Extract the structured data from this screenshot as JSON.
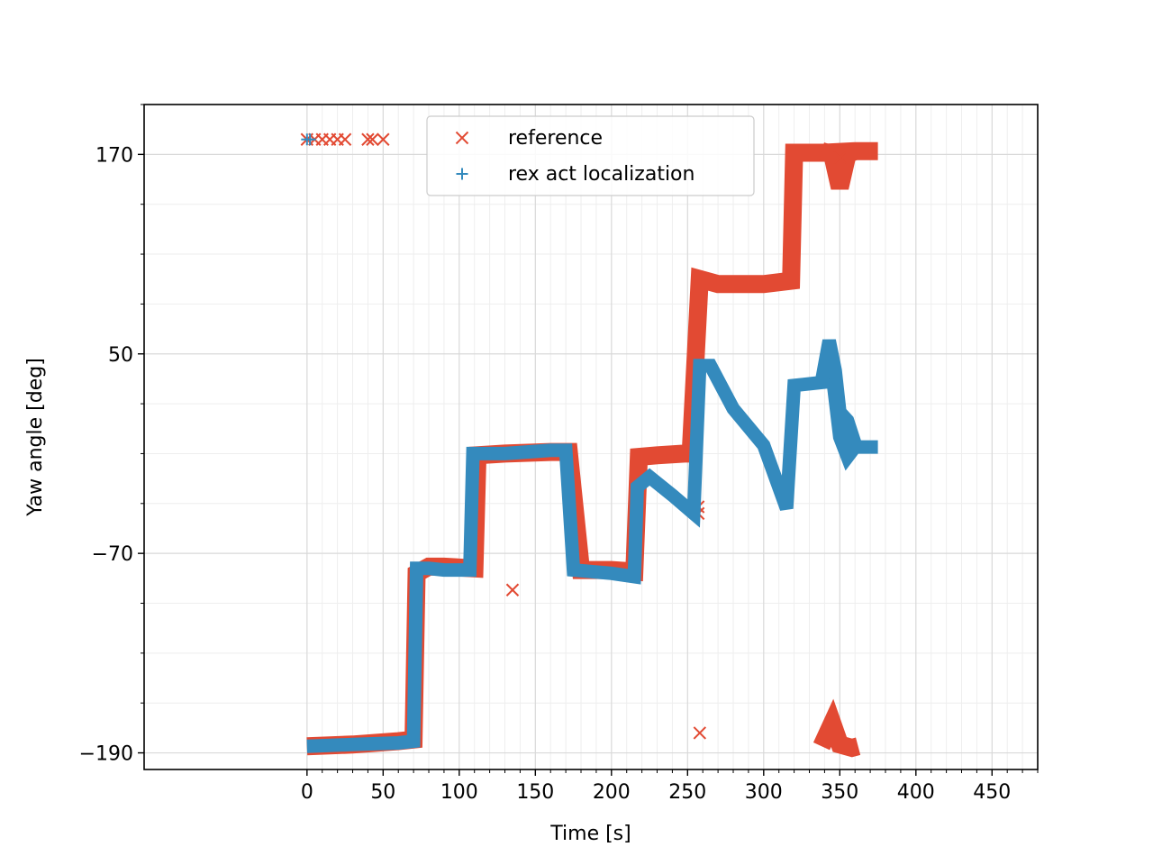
{
  "chart_data": {
    "type": "scatter",
    "xlabel": "Time [s]",
    "ylabel": "Yaw angle [deg]",
    "xlim": [
      -107,
      480
    ],
    "ylim": [
      -200,
      200
    ],
    "x_ticks": [
      0,
      50,
      100,
      150,
      200,
      250,
      300,
      350,
      400,
      450
    ],
    "x_tick_labels": [
      "0",
      "50",
      "100",
      "150",
      "200",
      "250",
      "300",
      "350",
      "400",
      "450"
    ],
    "y_ticks": [
      -190,
      -70,
      50,
      170
    ],
    "y_tick_labels": [
      "−190",
      "−70",
      "50",
      "170"
    ],
    "grid": true,
    "minor_grid": true,
    "legend_position": "top-center",
    "series": [
      {
        "name": "reference",
        "marker": "x",
        "color": "#E24A33",
        "segments": [
          [
            [
              0,
              -186
            ],
            [
              30,
              -185
            ],
            [
              60,
              -183
            ],
            [
              70,
              -182
            ],
            [
              72,
              -82
            ],
            [
              80,
              -78
            ],
            [
              90,
              -78
            ],
            [
              110,
              -79
            ],
            [
              112,
              -11
            ],
            [
              130,
              -10
            ],
            [
              160,
              -9
            ],
            [
              172,
              -9
            ],
            [
              180,
              -80
            ],
            [
              200,
              -80
            ],
            [
              215,
              -81
            ],
            [
              218,
              -12
            ],
            [
              230,
              -11
            ],
            [
              248,
              -10
            ],
            [
              252,
              -10
            ],
            [
              258,
              95
            ],
            [
              270,
              92
            ],
            [
              300,
              92
            ],
            [
              318,
              94
            ],
            [
              320,
              171
            ],
            [
              340,
              171
            ],
            [
              360,
              172
            ],
            [
              375,
              172
            ]
          ],
          [
            [
              338,
              172
            ],
            [
              345,
              170
            ],
            [
              350,
              150
            ],
            [
              355,
              170
            ],
            [
              360,
              172
            ]
          ],
          [
            [
              338,
              -186
            ],
            [
              345,
              -172
            ],
            [
              350,
              -185
            ],
            [
              358,
              -187
            ],
            [
              362,
              -186
            ]
          ]
        ],
        "points": [
          [
            0,
            179
          ],
          [
            5,
            179
          ],
          [
            10,
            179
          ],
          [
            15,
            179
          ],
          [
            20,
            179
          ],
          [
            25,
            179
          ],
          [
            40,
            179
          ],
          [
            43,
            179
          ],
          [
            50,
            179
          ],
          [
            135,
            -92
          ],
          [
            257,
            -42
          ],
          [
            257,
            -46
          ],
          [
            258,
            -178
          ],
          [
            350,
            168
          ]
        ]
      },
      {
        "name": "rex act localization",
        "marker": "+",
        "color": "#348ABD",
        "segments": [
          [
            [
              0,
              -186
            ],
            [
              30,
              -185
            ],
            [
              60,
              -184
            ],
            [
              70,
              -183
            ],
            [
              72,
              -79
            ],
            [
              80,
              -79
            ],
            [
              90,
              -80
            ],
            [
              107,
              -80
            ],
            [
              109,
              -10
            ],
            [
              130,
              -10
            ],
            [
              160,
              -8
            ],
            [
              170,
              -8
            ],
            [
              175,
              -80
            ],
            [
              200,
              -82
            ],
            [
              215,
              -84
            ],
            [
              217,
              -30
            ],
            [
              225,
              -24
            ],
            [
              240,
              -35
            ],
            [
              254,
              -46
            ],
            [
              258,
              43
            ],
            [
              265,
              43
            ],
            [
              280,
              17
            ],
            [
              300,
              -5
            ],
            [
              315,
              -43
            ],
            [
              320,
              31
            ],
            [
              340,
              33
            ],
            [
              345,
              38
            ],
            [
              350,
              0
            ],
            [
              355,
              -12
            ],
            [
              360,
              -6
            ],
            [
              375,
              -6
            ]
          ],
          [
            [
              338,
              33
            ],
            [
              343,
              58
            ],
            [
              347,
              40
            ],
            [
              350,
              15
            ],
            [
              355,
              10
            ],
            [
              360,
              -4
            ]
          ]
        ],
        "points": [
          [
            0,
            179
          ],
          [
            2,
            179
          ]
        ]
      }
    ]
  }
}
